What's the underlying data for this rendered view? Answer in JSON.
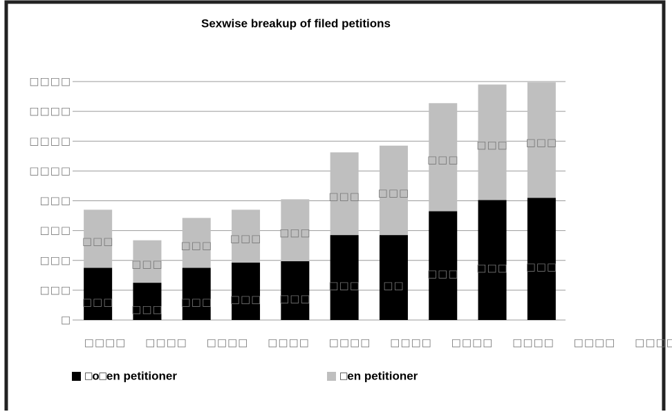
{
  "chart_data": {
    "type": "stacked_bar",
    "title": "Sexwise breakup of filed petitions",
    "categories": [
      "□□□□",
      "□□□□",
      "□□□□",
      "□□□□",
      "□□□□",
      "□□□□",
      "□□□□",
      "□□□□",
      "□□□□",
      "□□□□"
    ],
    "series": [
      {
        "name": "□o□en petitioner",
        "color": "#000000",
        "values": [
          350,
          250,
          350,
          385,
          395,
          570,
          570,
          730,
          805,
          820
        ],
        "value_labels": [
          "□□□",
          "□□□",
          "□□□",
          "□□□",
          "□□□",
          "□□□",
          "□□",
          "□□□",
          "□□□",
          "□□□"
        ]
      },
      {
        "name": "□en petitioner",
        "color": "#bfbfbf",
        "values": [
          390,
          285,
          335,
          355,
          415,
          555,
          600,
          725,
          775,
          775
        ],
        "value_labels": [
          "□□□",
          "□□□",
          "□□□",
          "□□□",
          "□□□",
          "□□□",
          "□□□",
          "□□□",
          "□□□",
          "□□□"
        ]
      }
    ],
    "ylim": [
      0,
      1600
    ],
    "yticks": [
      {
        "value": 0,
        "label": "□"
      },
      {
        "value": 200,
        "label": "□□□"
      },
      {
        "value": 400,
        "label": "□□□"
      },
      {
        "value": 600,
        "label": "□□□"
      },
      {
        "value": 800,
        "label": "□□□"
      },
      {
        "value": 1000,
        "label": "□□□□"
      },
      {
        "value": 1200,
        "label": "□□□□"
      },
      {
        "value": 1400,
        "label": "□□□□"
      },
      {
        "value": 1600,
        "label": "□□□□"
      }
    ],
    "grid": true,
    "legend": "bottom"
  }
}
